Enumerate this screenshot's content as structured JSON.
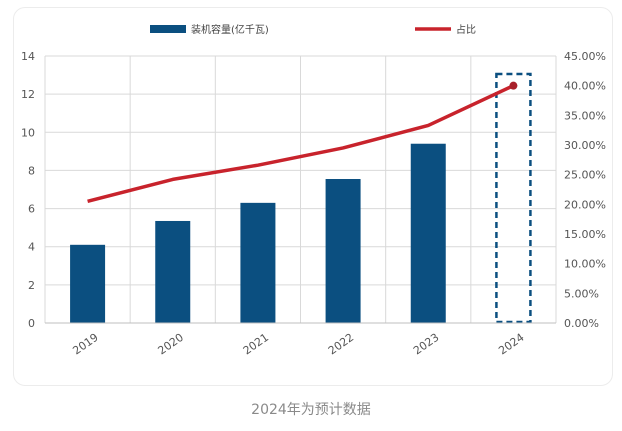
{
  "caption": "2024年为预计数据",
  "chart_data": {
    "type": "bar+line",
    "categories": [
      "2019",
      "2020",
      "2021",
      "2022",
      "2023",
      "2024"
    ],
    "series": [
      {
        "name": "装机容量(亿千瓦)",
        "type": "bar",
        "axis": "left",
        "color": "#0b4f80",
        "values": [
          4.1,
          5.35,
          6.3,
          7.55,
          9.4,
          null
        ]
      },
      {
        "name": "占比",
        "type": "line",
        "axis": "right",
        "color": "#c8232c",
        "values": [
          20.5,
          24.2,
          26.6,
          29.5,
          33.3,
          40.0
        ]
      }
    ],
    "y_left": {
      "min": 0,
      "max": 14,
      "ticks": [
        "0",
        "2",
        "4",
        "6",
        "8",
        "10",
        "12",
        "14"
      ]
    },
    "y_right": {
      "min": 0,
      "max": 45,
      "ticks": [
        "0.00%",
        "5.00%",
        "10.00%",
        "15.00%",
        "20.00%",
        "25.00%",
        "30.00%",
        "35.00%",
        "40.00%",
        "45.00%"
      ]
    },
    "legend_position": "top",
    "grid": true,
    "highlight": {
      "category": "2024",
      "style": "dashed-box",
      "color": "#0b4f80"
    }
  }
}
